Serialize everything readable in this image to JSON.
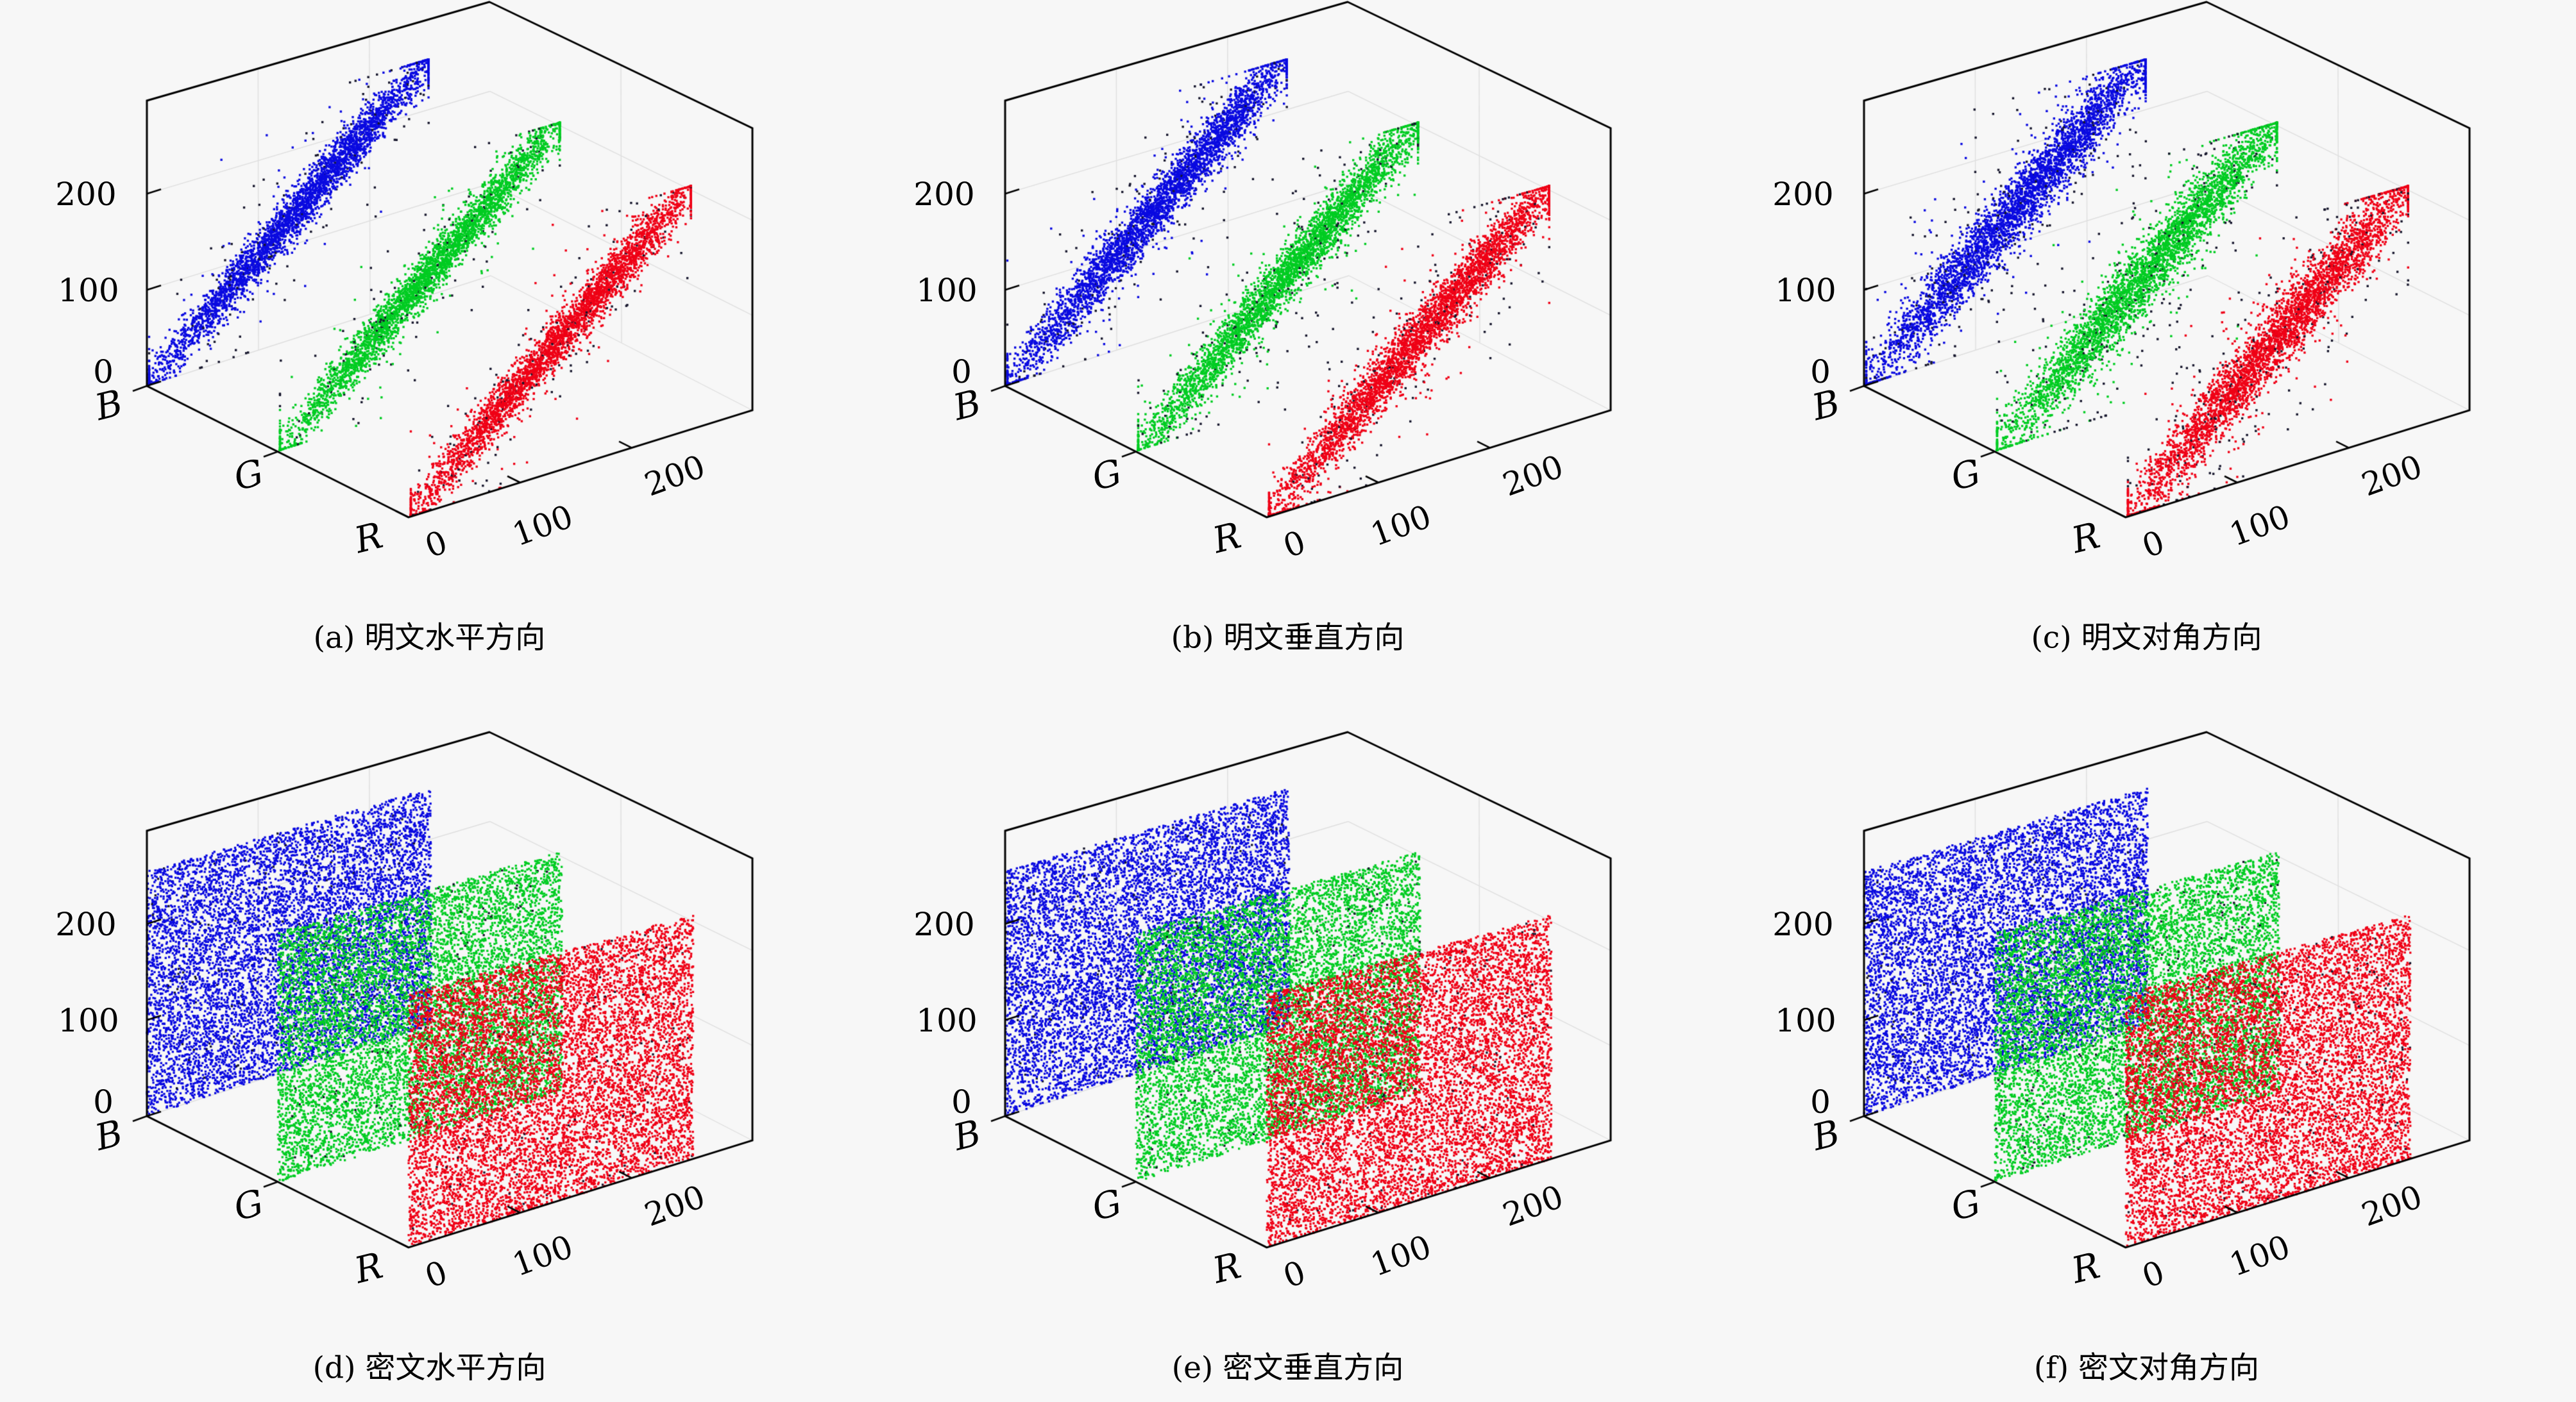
{
  "page": {
    "background": "#f7f7f7",
    "figure_type": "adjacent-pixel correlation scatter figure"
  },
  "chart_data": {
    "type": "scatter",
    "subtype": "3d-scatter-grid",
    "description": "Six 3D scatter subplots of adjacent-pixel correlation for R, G, B channels. Plaintext subplots (a-c) show tight diagonal correlation bands; ciphertext subplots (d-f) show uniform random fill over the full 0-255 plane.",
    "axes": {
      "z_label_ticks": [
        "200",
        "100",
        "0"
      ],
      "x_label_ticks": [
        "0",
        "100",
        "200"
      ],
      "depth_labels": [
        "B",
        "G",
        "R"
      ],
      "x_tick_values": [
        0,
        100,
        200
      ],
      "z_tick_values": [
        0,
        100,
        200
      ],
      "value_range": [
        0,
        255
      ],
      "x_axis_max": 308,
      "z_axis_max": 297,
      "grid": true
    },
    "channels": [
      {
        "name": "B",
        "color": "#0a0ae0",
        "depth": 1.0
      },
      {
        "name": "G",
        "color": "#00cc22",
        "depth": 0.5
      },
      {
        "name": "R",
        "color": "#ef0016",
        "depth": 0.0
      }
    ],
    "dark_point_color": "#16162c",
    "axis_line_color": "#000000",
    "grid_line_color": "#dedede",
    "subplots": [
      {
        "key": "a",
        "caption": "(a) 明文水平方向",
        "mode": "plaintext",
        "direction": "horizontal",
        "seed": 11,
        "n_points": 3600,
        "noise_sigma": 13,
        "outlier_frac": 0.06,
        "dark_frac": 0.015
      },
      {
        "key": "b",
        "caption": "(b) 明文垂直方向",
        "mode": "plaintext",
        "direction": "vertical",
        "seed": 23,
        "n_points": 3800,
        "noise_sigma": 15,
        "outlier_frac": 0.07,
        "dark_frac": 0.015
      },
      {
        "key": "c",
        "caption": "(c) 明文对角方向",
        "mode": "plaintext",
        "direction": "diagonal",
        "seed": 37,
        "n_points": 4000,
        "noise_sigma": 18,
        "outlier_frac": 0.08,
        "dark_frac": 0.015
      },
      {
        "key": "d",
        "caption": "(d) 密文水平方向",
        "mode": "ciphertext",
        "direction": "horizontal",
        "seed": 53,
        "n_points": 8500,
        "dark_frac": 0.02
      },
      {
        "key": "e",
        "caption": "(e) 密文垂直方向",
        "mode": "ciphertext",
        "direction": "vertical",
        "seed": 67,
        "n_points": 8500,
        "dark_frac": 0.02
      },
      {
        "key": "f",
        "caption": "(f) 密文对角方向",
        "mode": "ciphertext",
        "direction": "diagonal",
        "seed": 79,
        "n_points": 8500,
        "dark_frac": 0.02
      }
    ]
  }
}
